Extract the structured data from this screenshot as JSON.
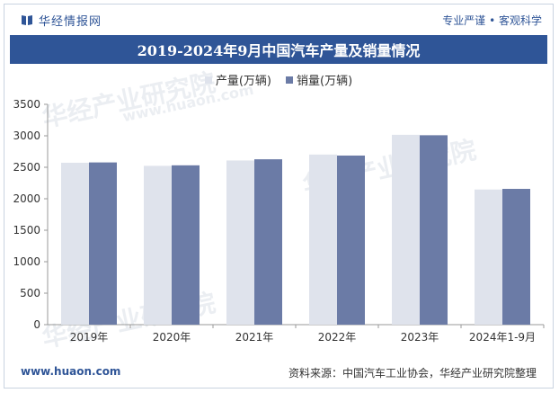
{
  "header": {
    "brand": "华经情报网",
    "tagline": "专业严谨 • 客观科学",
    "logo_icon": "book-icon"
  },
  "footer": {
    "website": "www.huaon.com",
    "source": "资料来源：中国汽车工业协会，华经产业研究院整理"
  },
  "watermarks": [
    "华经产业研究院",
    "www.huaon.com"
  ],
  "colors": {
    "brand": "#2f5597",
    "production": "#dfe3ec",
    "sales": "#6b7ba6"
  },
  "chart_data": {
    "type": "bar",
    "title": "2019-2024年9月中国汽车产量及销量情况",
    "xlabel": "",
    "ylabel": "",
    "categories": [
      "2019年",
      "2020年",
      "2021年",
      "2022年",
      "2023年",
      "2024年1-9月"
    ],
    "series": [
      {
        "name": "产量(万辆)",
        "values": [
          2572,
          2523,
          2608,
          2702,
          3016,
          2147
        ]
      },
      {
        "name": "销量(万辆)",
        "values": [
          2577,
          2531,
          2627,
          2686,
          3009,
          2157
        ]
      }
    ],
    "ylim": [
      0,
      3500
    ],
    "yticks": [
      0,
      500,
      1000,
      1500,
      2000,
      2500,
      3000,
      3500
    ],
    "grid": false,
    "legend_position": "top-center"
  }
}
